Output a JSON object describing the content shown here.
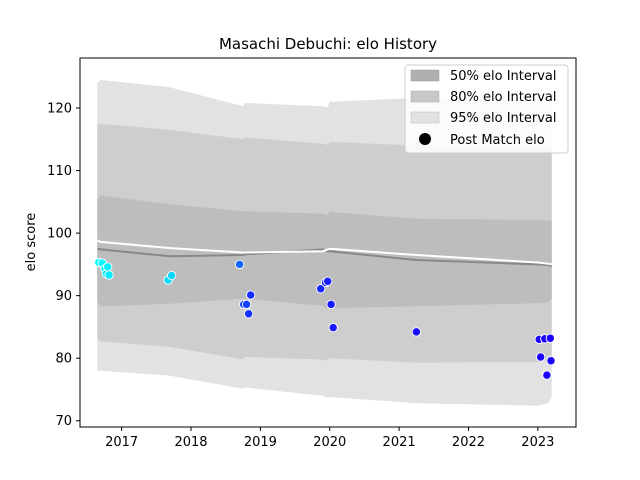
{
  "chart_data": {
    "type": "scatter",
    "title": "Masachi Debuchi: elo History",
    "xlabel": "",
    "ylabel": "elo score",
    "xlim": [
      2016.4,
      2023.55
    ],
    "ylim": [
      69,
      128
    ],
    "xticks": [
      2017,
      2018,
      2019,
      2020,
      2021,
      2022,
      2023
    ],
    "yticks": [
      70,
      80,
      90,
      100,
      110,
      120
    ],
    "grid": false,
    "legend_position": "top-right",
    "legend": [
      {
        "label": "50% elo Interval",
        "kind": "patch",
        "color": "#b0b0b0"
      },
      {
        "label": "80% elo Interval",
        "kind": "patch",
        "color": "#c8c8c8"
      },
      {
        "label": "95% elo Interval",
        "kind": "patch",
        "color": "#e2e2e2"
      },
      {
        "label": "Post Match elo",
        "kind": "marker",
        "color": "#000000"
      }
    ],
    "bands": {
      "x": [
        2016.65,
        2016.7,
        2017.7,
        2018.75,
        2018.78,
        2019.9,
        2019.97,
        2020.0,
        2021.25,
        2023.0,
        2023.15,
        2023.2
      ],
      "p95_hi": [
        124.0,
        124.5,
        123.3,
        120.3,
        120.8,
        120.3,
        120.1,
        121.0,
        121.6,
        121.0,
        120.9,
        120.8
      ],
      "p95_lo": [
        78.0,
        78.0,
        77.2,
        75.1,
        75.3,
        74.0,
        73.7,
        73.8,
        72.8,
        72.4,
        72.8,
        73.8
      ],
      "p80_hi": [
        117.5,
        117.5,
        116.5,
        115.0,
        115.3,
        114.3,
        114.1,
        114.6,
        114.0,
        113.6,
        113.4,
        113.5
      ],
      "p80_lo": [
        83.0,
        82.7,
        81.8,
        79.8,
        80.2,
        79.8,
        79.6,
        80.0,
        79.3,
        79.4,
        79.7,
        80.2
      ],
      "p50_hi": [
        105.5,
        106.0,
        104.6,
        103.5,
        103.5,
        103.1,
        102.9,
        103.4,
        102.3,
        102.1,
        102.0,
        102.0
      ],
      "p50_lo": [
        89.0,
        88.3,
        88.7,
        89.5,
        89.5,
        88.4,
        87.9,
        88.0,
        88.3,
        88.8,
        89.0,
        89.5
      ]
    },
    "mean_line": {
      "x": [
        2016.65,
        2016.7,
        2017.7,
        2018.75,
        2018.78,
        2019.9,
        2019.97,
        2020.0,
        2021.25,
        2023.0,
        2023.15,
        2023.2
      ],
      "y": [
        97.5,
        97.4,
        96.3,
        96.5,
        96.6,
        97.4,
        97.1,
        97.1,
        95.7,
        95.0,
        94.9,
        94.7
      ],
      "color": "#888888"
    },
    "upper_line": {
      "x": [
        2016.65,
        2016.7,
        2017.7,
        2018.75,
        2018.78,
        2019.9,
        2019.97,
        2020.0,
        2021.25,
        2023.0,
        2023.15,
        2023.2
      ],
      "y": [
        98.8,
        98.6,
        97.6,
        96.9,
        96.9,
        97.1,
        97.4,
        97.5,
        96.5,
        95.3,
        95.1,
        95.0
      ],
      "color": "#ffffff"
    },
    "series": [
      {
        "name": "Post Match elo",
        "color_old": "#00ffff",
        "color_new": "#1a00ff",
        "points": [
          {
            "x": 2016.67,
            "y": 95.3,
            "c": 0.0
          },
          {
            "x": 2016.72,
            "y": 95.2,
            "c": 0.02
          },
          {
            "x": 2016.76,
            "y": 94.3,
            "c": 0.04
          },
          {
            "x": 2016.78,
            "y": 93.5,
            "c": 0.05
          },
          {
            "x": 2016.8,
            "y": 94.6,
            "c": 0.06
          },
          {
            "x": 2016.82,
            "y": 93.3,
            "c": 0.07
          },
          {
            "x": 2017.67,
            "y": 92.5,
            "c": 0.15
          },
          {
            "x": 2017.72,
            "y": 93.2,
            "c": 0.16
          },
          {
            "x": 2018.7,
            "y": 95.0,
            "c": 0.6
          },
          {
            "x": 2018.76,
            "y": 88.6,
            "c": 0.72
          },
          {
            "x": 2018.8,
            "y": 88.6,
            "c": 0.75
          },
          {
            "x": 2018.83,
            "y": 87.1,
            "c": 0.8
          },
          {
            "x": 2018.86,
            "y": 90.1,
            "c": 0.82
          },
          {
            "x": 2019.87,
            "y": 91.1,
            "c": 0.85
          },
          {
            "x": 2019.94,
            "y": 92.1,
            "c": 0.87
          },
          {
            "x": 2019.97,
            "y": 92.3,
            "c": 0.88
          },
          {
            "x": 2020.02,
            "y": 88.6,
            "c": 0.9
          },
          {
            "x": 2020.05,
            "y": 84.9,
            "c": 0.91
          },
          {
            "x": 2021.25,
            "y": 84.2,
            "c": 0.95
          },
          {
            "x": 2023.02,
            "y": 83.0,
            "c": 1.0
          },
          {
            "x": 2023.04,
            "y": 80.2,
            "c": 1.0
          },
          {
            "x": 2023.1,
            "y": 83.1,
            "c": 1.0
          },
          {
            "x": 2023.13,
            "y": 77.3,
            "c": 1.0
          },
          {
            "x": 2023.18,
            "y": 83.2,
            "c": 1.0
          },
          {
            "x": 2023.19,
            "y": 79.6,
            "c": 1.0
          }
        ]
      }
    ]
  }
}
